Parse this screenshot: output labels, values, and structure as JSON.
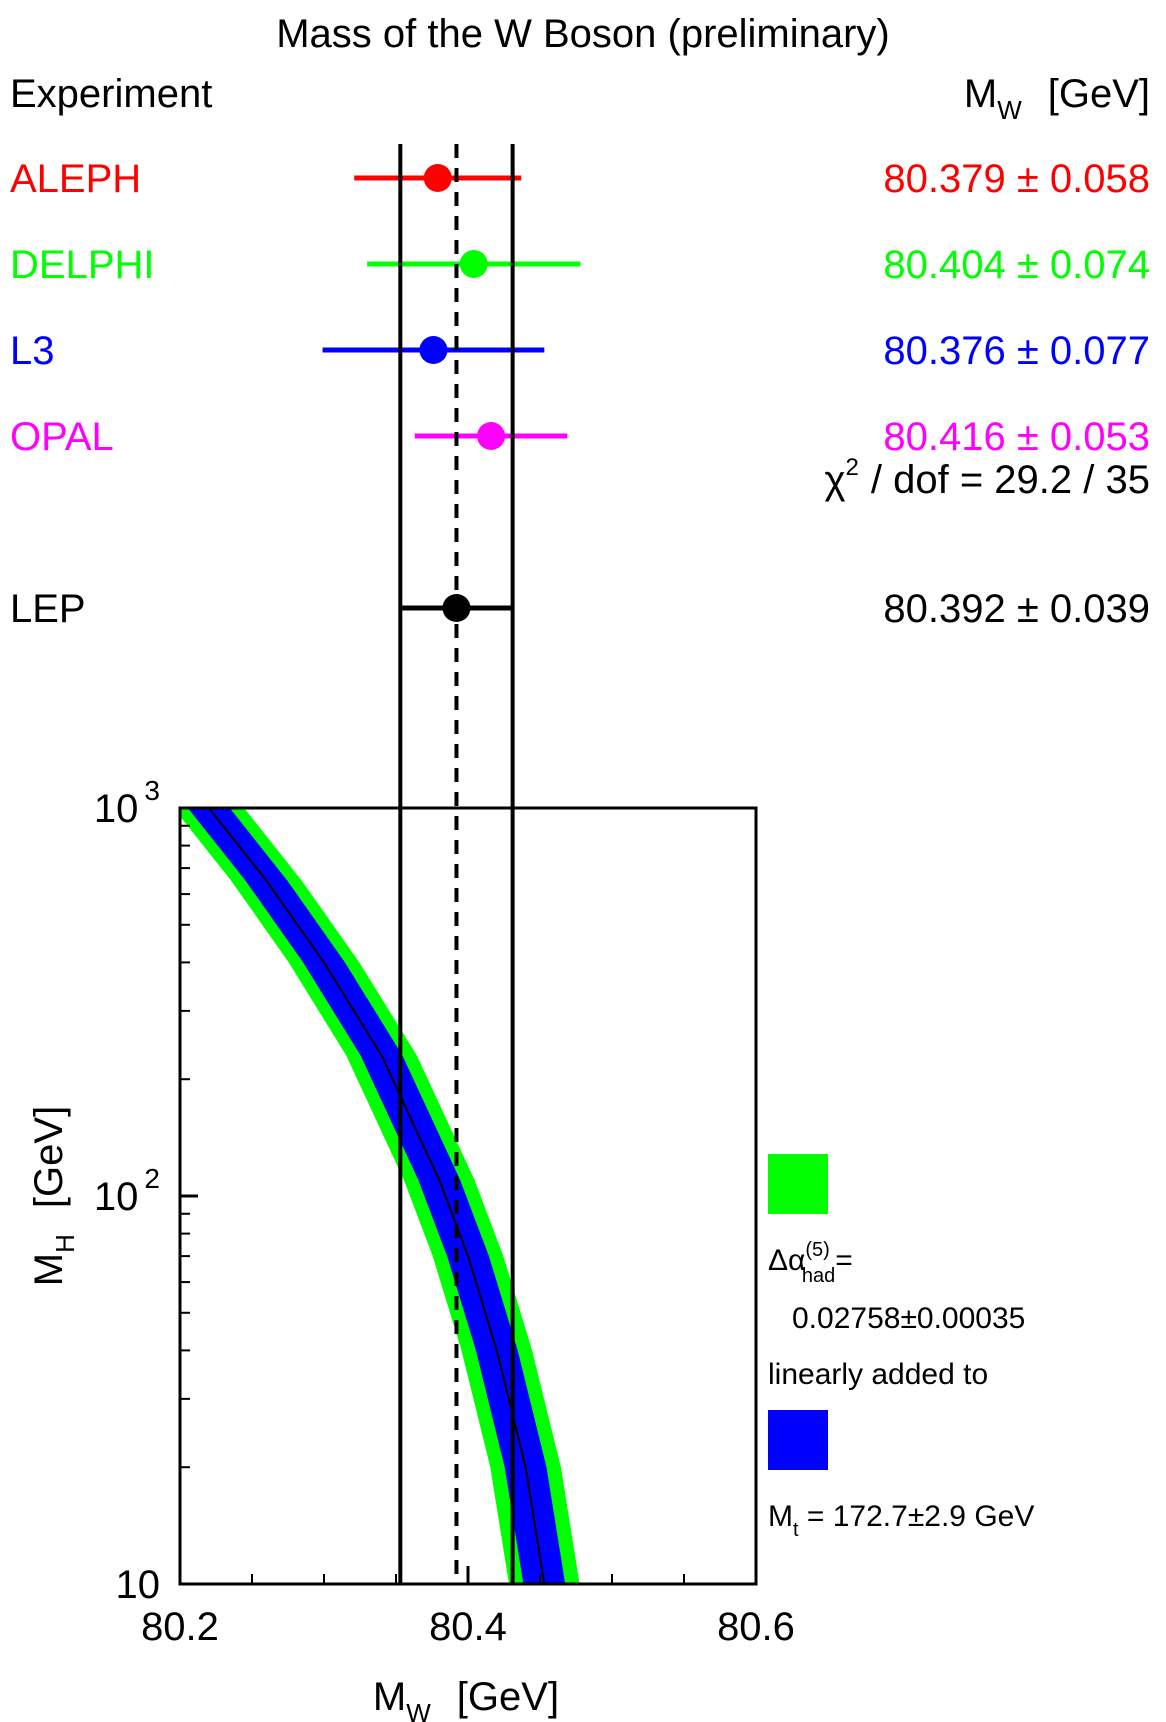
{
  "title": "Mass of the W Boson (preliminary)",
  "header": {
    "experiment_label": "Experiment",
    "mw_symbol": "M",
    "mw_subscript": "W",
    "mw_unit": "[GeV]"
  },
  "colors": {
    "ALEPH": "#ff0000",
    "DELPHI": "#00ff00",
    "L3": "#0000ff",
    "OPAL": "#ff00ff",
    "LEP": "#000000",
    "band_outer": "#00ff00",
    "band_inner": "#0000ff"
  },
  "chart_data": [
    {
      "type": "scatter",
      "name": "Mass of the W Boson (preliminary)",
      "x_range": [
        80.2,
        80.6
      ],
      "measurements": [
        {
          "name": "ALEPH",
          "value": 80.379,
          "error": 0.058,
          "label": "80.379 ± 0.058"
        },
        {
          "name": "DELPHI",
          "value": 80.404,
          "error": 0.074,
          "label": "80.404 ± 0.074"
        },
        {
          "name": "L3",
          "value": 80.376,
          "error": 0.077,
          "label": "80.376 ± 0.077"
        },
        {
          "name": "OPAL",
          "value": 80.416,
          "error": 0.053,
          "label": "80.416 ± 0.053"
        }
      ],
      "combined": {
        "name": "LEP",
        "value": 80.392,
        "error": 0.039,
        "label": "80.392 ± 0.039"
      },
      "chi2": {
        "symbol": "χ",
        "superscript": "2",
        "text": "/ dof  =  29.2 / 35"
      }
    },
    {
      "type": "area",
      "xlabel": "M",
      "xlabel_sub": "W",
      "xlabel_unit": "[GeV]",
      "ylabel": "M",
      "ylabel_sub": "H",
      "ylabel_unit": "[GeV]",
      "xlim": [
        80.2,
        80.6
      ],
      "ylim": [
        10,
        1000
      ],
      "yscale": "log",
      "x_ticks": [
        80.2,
        80.4,
        80.6
      ],
      "x_tick_labels": [
        "80.2",
        "80.4",
        "80.6"
      ],
      "y_tick_labels": [
        {
          "value": 10,
          "base": "10",
          "exp": ""
        },
        {
          "value": 100,
          "base": "10",
          "exp": "2"
        },
        {
          "value": 1000,
          "base": "10",
          "exp": "3"
        }
      ],
      "central_curve": {
        "x": [
          80.22,
          80.26,
          80.3,
          80.34,
          80.38,
          80.4,
          80.42,
          80.44,
          80.453
        ],
        "y": [
          1000,
          650,
          400,
          230,
          110,
          70,
          40,
          20,
          10
        ]
      },
      "band_inner_halfwidth": 0.0145,
      "band_outer_halfwidth": 0.0245,
      "legend": {
        "placement": "right",
        "items": [
          {
            "swatch": "band_outer",
            "lines": [
              "Δα",
              "(5)",
              "had",
              "=",
              "0.02758±0.00035",
              "linearly added to"
            ]
          },
          {
            "swatch": "band_inner",
            "lines": [
              "M",
              "t",
              " = 172.7±2.9 GeV"
            ]
          }
        ]
      }
    }
  ]
}
